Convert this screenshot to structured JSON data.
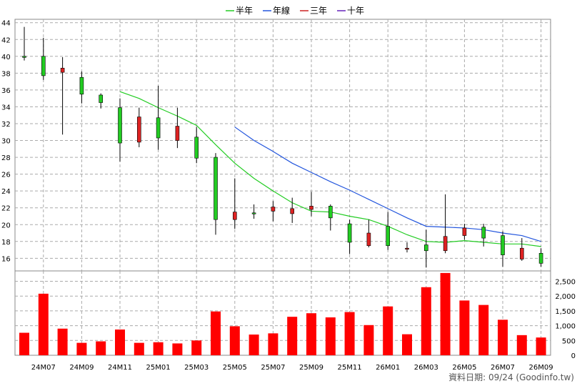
{
  "chart_data": {
    "type": "candlestick",
    "x_labels": [
      "24M07",
      "24M09",
      "24M11",
      "25M01",
      "25M03",
      "25M05",
      "25M07",
      "25M09",
      "25M11",
      "26M01",
      "26M03",
      "26M05",
      "26M07",
      "26M09"
    ],
    "price_ylim": [
      14.5,
      44.4
    ],
    "price_ticks": [
      16,
      18,
      20,
      22,
      24,
      26,
      28,
      30,
      32,
      34,
      36,
      38,
      40,
      42,
      44
    ],
    "volume_ylim": [
      0,
      2850
    ],
    "volume_ticks": [
      "0",
      "500",
      "1,000",
      "1,500",
      "2,000",
      "2,500"
    ],
    "volume_tick_values": [
      0,
      500,
      1000,
      1500,
      2000,
      2500
    ],
    "grid": true,
    "legend_position": "top-center",
    "legend": [
      {
        "name": "半年",
        "color": "#22cc22"
      },
      {
        "name": "年線",
        "color": "#2255dd"
      },
      {
        "name": "三年",
        "color": "#cc2222"
      },
      {
        "name": "十年",
        "color": "#6622bb"
      }
    ],
    "candles": [
      {
        "o": 40.0,
        "h": 43.5,
        "l": 39.5,
        "c": 40.0
      },
      {
        "o": 37.7,
        "h": 42.2,
        "l": 37.2,
        "c": 40.0
      },
      {
        "o": 38.6,
        "h": 39.9,
        "l": 30.7,
        "c": 38.1
      },
      {
        "o": 35.5,
        "h": 38.2,
        "l": 34.4,
        "c": 37.5
      },
      {
        "o": 34.5,
        "h": 35.6,
        "l": 33.8,
        "c": 35.4
      },
      {
        "o": 29.7,
        "h": 35.0,
        "l": 27.5,
        "c": 33.9
      },
      {
        "o": 32.8,
        "h": 33.9,
        "l": 29.2,
        "c": 29.8
      },
      {
        "o": 30.3,
        "h": 36.5,
        "l": 28.9,
        "c": 32.7
      },
      {
        "o": 31.7,
        "h": 33.9,
        "l": 29.1,
        "c": 30.0
      },
      {
        "o": 27.9,
        "h": 31.6,
        "l": 27.3,
        "c": 30.4
      },
      {
        "o": 20.6,
        "h": 28.5,
        "l": 18.8,
        "c": 28.0
      },
      {
        "o": 21.5,
        "h": 25.5,
        "l": 19.5,
        "c": 20.6
      },
      {
        "o": 21.3,
        "h": 22.4,
        "l": 20.7,
        "c": 21.4
      },
      {
        "o": 22.1,
        "h": 22.8,
        "l": 20.4,
        "c": 21.6
      },
      {
        "o": 21.9,
        "h": 23.2,
        "l": 20.2,
        "c": 21.3
      },
      {
        "o": 22.2,
        "h": 23.9,
        "l": 21.0,
        "c": 21.8
      },
      {
        "o": 20.8,
        "h": 22.4,
        "l": 19.3,
        "c": 22.2
      },
      {
        "o": 17.9,
        "h": 20.6,
        "l": 16.5,
        "c": 20.1
      },
      {
        "o": 19.0,
        "h": 20.6,
        "l": 17.3,
        "c": 17.5
      },
      {
        "o": 17.5,
        "h": 21.5,
        "l": 17.0,
        "c": 19.8
      },
      {
        "o": 17.2,
        "h": 17.9,
        "l": 16.7,
        "c": 17.1
      },
      {
        "o": 16.9,
        "h": 19.4,
        "l": 14.9,
        "c": 17.6
      },
      {
        "o": 18.6,
        "h": 23.6,
        "l": 16.6,
        "c": 16.9
      },
      {
        "o": 19.6,
        "h": 20.1,
        "l": 18.2,
        "c": 18.7
      },
      {
        "o": 18.4,
        "h": 20.1,
        "l": 17.4,
        "c": 19.7
      },
      {
        "o": 16.4,
        "h": 19.2,
        "l": 15.0,
        "c": 18.7
      },
      {
        "o": 17.2,
        "h": 18.4,
        "l": 15.7,
        "c": 15.9
      },
      {
        "o": 15.4,
        "h": 17.2,
        "l": 15.0,
        "c": 16.6
      }
    ],
    "half_year_line": [
      null,
      null,
      null,
      null,
      null,
      35.8,
      35.0,
      33.9,
      32.9,
      31.8,
      29.5,
      27.3,
      25.5,
      24.0,
      22.6,
      21.6,
      21.5,
      21.0,
      20.6,
      19.8,
      18.8,
      18.0,
      17.9,
      18.1,
      17.9,
      17.7,
      17.7,
      17.4
    ],
    "year_line": [
      null,
      null,
      null,
      null,
      null,
      null,
      null,
      null,
      null,
      null,
      null,
      31.6,
      30.0,
      28.7,
      27.3,
      26.2,
      25.1,
      24.1,
      23.0,
      21.9,
      20.8,
      19.8,
      19.7,
      19.6,
      19.4,
      19.0,
      18.7,
      18.0
    ],
    "volumes": [
      760,
      2080,
      900,
      420,
      470,
      870,
      420,
      440,
      400,
      500,
      1480,
      980,
      700,
      740,
      1300,
      1420,
      1280,
      1460,
      1020,
      1650,
      710,
      2300,
      2780,
      1850,
      1700,
      1200,
      680,
      600
    ]
  },
  "colors": {
    "candle_up": "#22cc22",
    "candle_down": "#dd2222",
    "volume": "#ff0000",
    "grid": "#aaaaaa"
  },
  "footer": "資料日期: 09/24 (Goodinfo.tw)"
}
